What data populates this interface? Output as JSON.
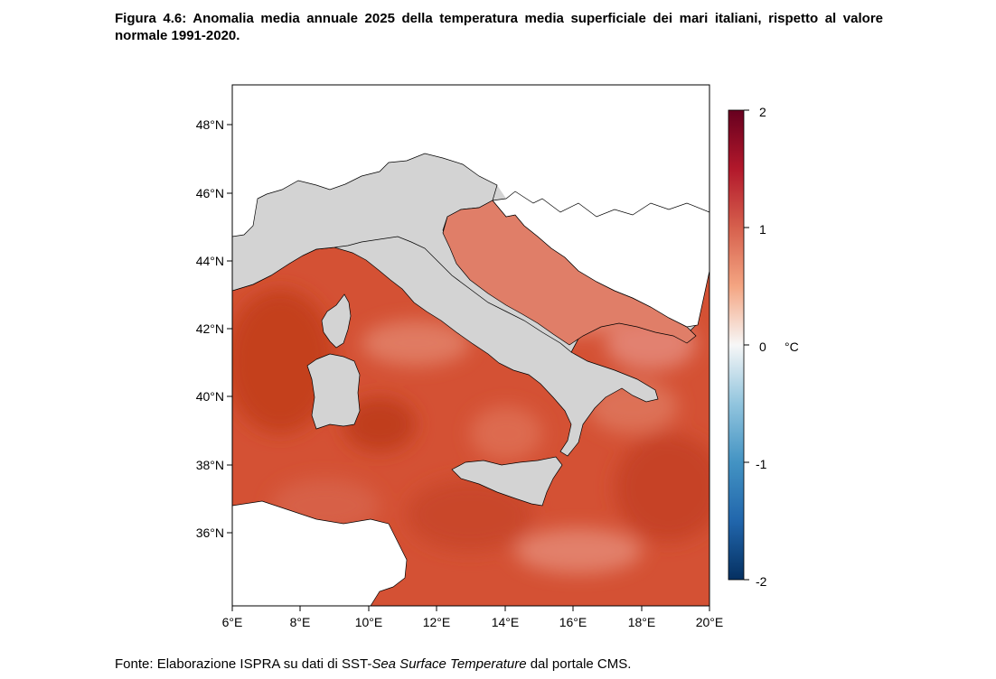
{
  "caption": "Figura 4.6: Anomalia media annuale 2025 della temperatura media superficiale dei mari italiani, rispetto al valore normale 1991-2020.",
  "source": {
    "prefix": "Fonte: Elaborazione ISPRA su dati di SST-",
    "italic": "Sea Surface Temperature",
    "suffix": " dal portale CMS."
  },
  "map": {
    "lat_ticks": [
      "48°N",
      "46°N",
      "44°N",
      "42°N",
      "40°N",
      "38°N",
      "36°N"
    ],
    "lat_values": [
      48,
      46,
      44,
      42,
      40,
      38,
      36
    ],
    "lon_ticks": [
      "6°E",
      "8°E",
      "10°E",
      "12°E",
      "14°E",
      "16°E",
      "18°E",
      "20°E"
    ],
    "lon_values": [
      6,
      8,
      10,
      12,
      14,
      16,
      18,
      20
    ],
    "extent": {
      "lon": [
        6,
        20
      ],
      "lat": [
        34,
        49
      ]
    },
    "land_color": "#d3d3d3",
    "sea_color": "#d0502f",
    "sea_light_color": "#e08a76"
  },
  "legend": {
    "unit": "°C",
    "ticks": [
      "2",
      "1",
      "0",
      "-1",
      "-2"
    ],
    "tick_values": [
      2,
      1,
      0,
      -1,
      -2
    ],
    "range": [
      -2,
      2
    ],
    "colors": [
      "#053061",
      "#2166ac",
      "#4393c3",
      "#92c5de",
      "#f7f7f7",
      "#f4a582",
      "#d6604d",
      "#b2182b",
      "#67001f"
    ]
  }
}
